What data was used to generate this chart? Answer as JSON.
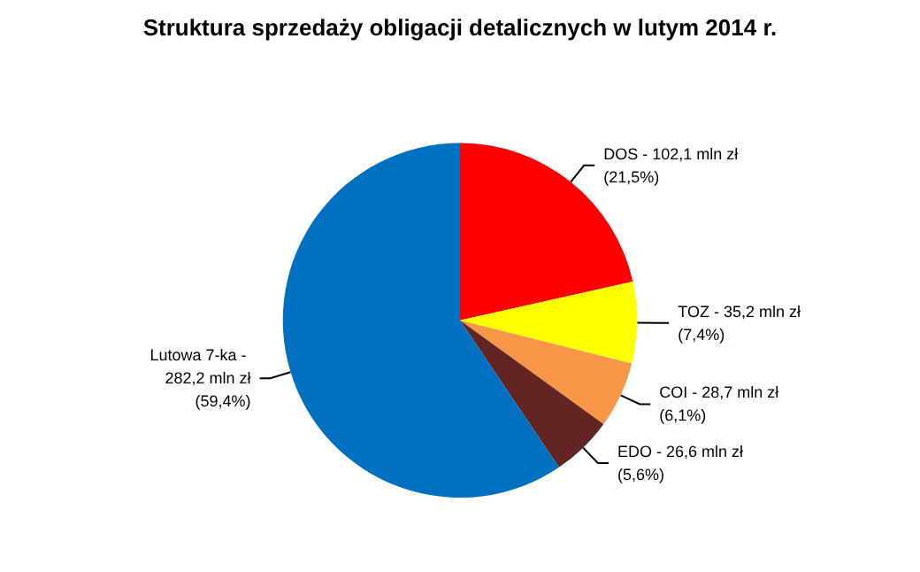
{
  "chart_data": {
    "type": "pie",
    "title": "Struktura sprzedaży obligacji detalicznych w lutym 2014 r.",
    "categories": [
      "DOS -",
      "TOZ -",
      "COI -",
      "EDO -",
      "Lutowa 7-ka -"
    ],
    "values": [
      102.1,
      35.2,
      28.7,
      26.6,
      282.2
    ],
    "colors": [
      "#ff0000",
      "#ffff00",
      "#f79646",
      "#632523",
      "#0070c0"
    ],
    "value_labels": [
      "102,1 mln zł\n(21,5%)",
      "35,2 mln zł\n(7,4%)",
      "28,7 mln zł\n(6,1%)",
      "26,6 mln zł\n(5,6%)",
      "\n282,2 mln zł\n(59,4%)"
    ],
    "legend": false
  }
}
